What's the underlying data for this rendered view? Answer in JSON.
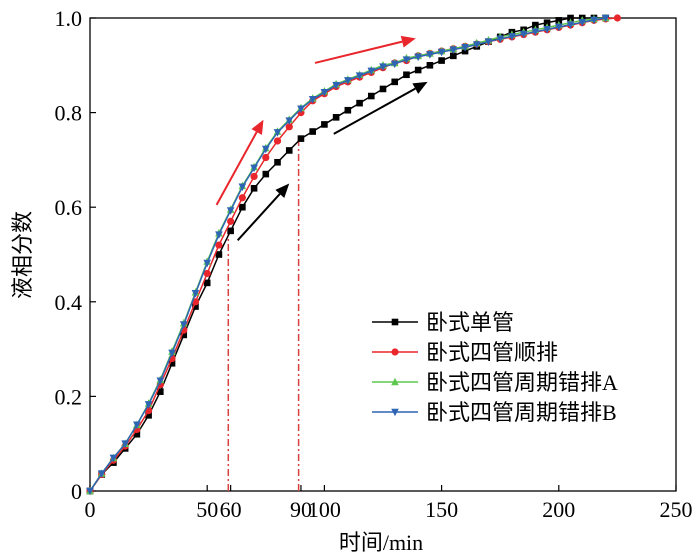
{
  "chart_data": {
    "type": "line",
    "xlabel": "时间/min",
    "ylabel": "液相分数",
    "xlim": [
      0,
      250
    ],
    "ylim": [
      0,
      1.0
    ],
    "xticks": [
      0,
      50,
      60,
      90,
      100,
      150,
      200,
      250
    ],
    "xtick_labels": [
      "0",
      "50",
      "60",
      "90",
      "100",
      "150",
      "200",
      "250"
    ],
    "yticks": [
      0,
      0.2,
      0.4,
      0.6,
      0.8,
      1.0
    ],
    "ytick_labels": [
      "0",
      "0.2",
      "0.4",
      "0.6",
      "0.8",
      "1.0"
    ],
    "grid": false,
    "legend_position": "lower-right",
    "series": [
      {
        "name": "卧式单管",
        "color": "#000000",
        "marker": "square",
        "x": [
          0,
          5,
          10,
          15,
          20,
          25,
          30,
          35,
          40,
          45,
          50,
          55,
          60,
          65,
          70,
          75,
          80,
          85,
          90,
          95,
          100,
          105,
          110,
          115,
          120,
          125,
          130,
          135,
          140,
          145,
          150,
          155,
          160,
          165,
          170,
          175,
          180,
          185,
          190,
          195,
          200,
          205,
          210,
          215,
          220
        ],
        "y": [
          0,
          0.035,
          0.06,
          0.09,
          0.12,
          0.16,
          0.21,
          0.27,
          0.33,
          0.39,
          0.44,
          0.5,
          0.55,
          0.6,
          0.64,
          0.67,
          0.695,
          0.72,
          0.745,
          0.76,
          0.775,
          0.79,
          0.805,
          0.82,
          0.835,
          0.85,
          0.865,
          0.88,
          0.89,
          0.9,
          0.91,
          0.92,
          0.93,
          0.94,
          0.95,
          0.96,
          0.97,
          0.975,
          0.985,
          0.99,
          0.995,
          1.0,
          1.0,
          1.0,
          1.0
        ]
      },
      {
        "name": "卧式四管顺排",
        "color": "#e8262b",
        "marker": "circle",
        "x": [
          0,
          5,
          10,
          15,
          20,
          25,
          30,
          35,
          40,
          45,
          50,
          55,
          60,
          65,
          70,
          75,
          80,
          85,
          90,
          95,
          100,
          105,
          110,
          115,
          120,
          125,
          130,
          135,
          140,
          145,
          150,
          155,
          160,
          165,
          170,
          175,
          180,
          185,
          190,
          195,
          200,
          205,
          210,
          215,
          220,
          225
        ],
        "y": [
          0,
          0.035,
          0.065,
          0.095,
          0.13,
          0.17,
          0.225,
          0.28,
          0.34,
          0.4,
          0.46,
          0.52,
          0.57,
          0.62,
          0.665,
          0.705,
          0.74,
          0.77,
          0.8,
          0.825,
          0.84,
          0.855,
          0.865,
          0.875,
          0.885,
          0.895,
          0.905,
          0.91,
          0.92,
          0.925,
          0.93,
          0.935,
          0.94,
          0.945,
          0.95,
          0.955,
          0.96,
          0.965,
          0.97,
          0.975,
          0.98,
          0.985,
          0.99,
          0.995,
          0.998,
          1.0
        ]
      },
      {
        "name": "卧式四管周期错排A",
        "color": "#5dc74f",
        "marker": "triangle-up",
        "x": [
          0,
          5,
          10,
          15,
          20,
          25,
          30,
          35,
          40,
          45,
          50,
          55,
          60,
          65,
          70,
          75,
          80,
          85,
          90,
          95,
          100,
          105,
          110,
          115,
          120,
          125,
          130,
          135,
          140,
          145,
          150,
          155,
          160,
          165,
          170,
          175,
          180,
          185,
          190,
          195,
          200,
          205,
          210,
          215,
          220
        ],
        "y": [
          0,
          0.037,
          0.07,
          0.1,
          0.14,
          0.185,
          0.235,
          0.295,
          0.355,
          0.42,
          0.485,
          0.545,
          0.595,
          0.645,
          0.685,
          0.725,
          0.76,
          0.785,
          0.81,
          0.83,
          0.845,
          0.86,
          0.87,
          0.88,
          0.89,
          0.9,
          0.905,
          0.915,
          0.92,
          0.925,
          0.93,
          0.935,
          0.94,
          0.947,
          0.953,
          0.96,
          0.965,
          0.97,
          0.975,
          0.98,
          0.985,
          0.99,
          0.995,
          0.998,
          1.0
        ]
      },
      {
        "name": "卧式四管周期错排B",
        "color": "#2e64b4",
        "marker": "triangle-down",
        "x": [
          0,
          5,
          10,
          15,
          20,
          25,
          30,
          35,
          40,
          45,
          50,
          55,
          60,
          65,
          70,
          75,
          80,
          85,
          90,
          95,
          100,
          105,
          110,
          115,
          120,
          125,
          130,
          135,
          140,
          145,
          150,
          155,
          160,
          165,
          170,
          175,
          180,
          185,
          190,
          195,
          200,
          205,
          210,
          215,
          220
        ],
        "y": [
          0,
          0.037,
          0.07,
          0.1,
          0.14,
          0.183,
          0.233,
          0.292,
          0.352,
          0.418,
          0.482,
          0.542,
          0.593,
          0.643,
          0.683,
          0.723,
          0.758,
          0.783,
          0.808,
          0.828,
          0.843,
          0.858,
          0.868,
          0.878,
          0.888,
          0.897,
          0.903,
          0.912,
          0.918,
          0.923,
          0.928,
          0.933,
          0.938,
          0.944,
          0.95,
          0.956,
          0.961,
          0.966,
          0.971,
          0.976,
          0.981,
          0.986,
          0.991,
          0.996,
          1.0
        ]
      }
    ],
    "reference_lines": [
      {
        "x": 59,
        "y_top": 0.55,
        "color": "#d94040",
        "style": "dash-dot"
      },
      {
        "x": 89,
        "y_top": 0.745,
        "color": "#d94040",
        "style": "dash-dot"
      }
    ],
    "arrows": [
      {
        "color": "#e8262b",
        "from": [
          54,
          0.605
        ],
        "to": [
          74,
          0.785
        ]
      },
      {
        "color": "#e8262b",
        "from": [
          96,
          0.905
        ],
        "to": [
          139,
          0.957
        ]
      },
      {
        "color": "#000000",
        "from": [
          63,
          0.53
        ],
        "to": [
          85,
          0.65
        ]
      },
      {
        "color": "#000000",
        "from": [
          104,
          0.755
        ],
        "to": [
          144,
          0.865
        ]
      }
    ]
  }
}
